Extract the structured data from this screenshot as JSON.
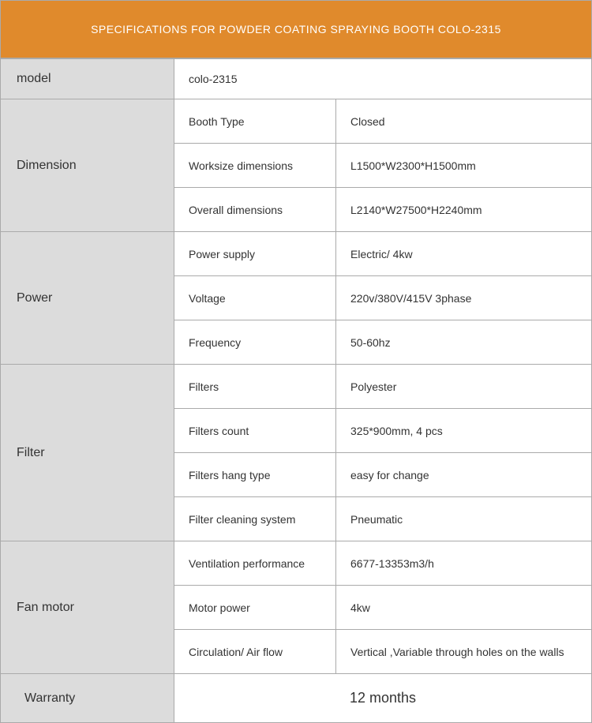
{
  "title": "SPECIFICATIONS FOR POWDER COATING SPRAYING BOOTH COLO-2315",
  "colors": {
    "header_bg": "#e08a2c",
    "header_text": "#ffffff",
    "label_bg": "#dcdcdc",
    "border": "#aaaaaa",
    "text": "#333333",
    "body_bg": "#ffffff"
  },
  "sections": {
    "model": {
      "label": "model",
      "value": "colo-2315"
    },
    "dimension": {
      "label": "Dimension",
      "rows": [
        {
          "attr": "Booth Type",
          "val": "Closed"
        },
        {
          "attr": "Worksize dimensions",
          "val": "L1500*W2300*H1500mm"
        },
        {
          "attr": "Overall dimensions",
          "val": "L2140*W27500*H2240mm"
        }
      ]
    },
    "power": {
      "label": "Power",
      "rows": [
        {
          "attr": "Power supply",
          "val": "Electric/ 4kw"
        },
        {
          "attr": "Voltage",
          "val": "220v/380V/415V  3phase"
        },
        {
          "attr": "Frequency",
          "val": "50-60hz"
        }
      ]
    },
    "filter": {
      "label": "Filter",
      "rows": [
        {
          "attr": "Filters",
          "val": "Polyester"
        },
        {
          "attr": "Filters count",
          "val": "325*900mm, 4 pcs"
        },
        {
          "attr": "Filters hang type",
          "val": "easy for change"
        },
        {
          "attr": "Filter cleaning system",
          "val": "Pneumatic"
        }
      ]
    },
    "fan_motor": {
      "label": "Fan motor",
      "rows": [
        {
          "attr": "Ventilation performance",
          "val": "6677-13353m3/h"
        },
        {
          "attr": "Motor power",
          "val": "4kw"
        },
        {
          "attr": "Circulation/ Air flow",
          "val": "Vertical ,Variable through holes on the walls"
        }
      ]
    },
    "warranty": {
      "label": "Warranty",
      "value": "12 months"
    }
  }
}
